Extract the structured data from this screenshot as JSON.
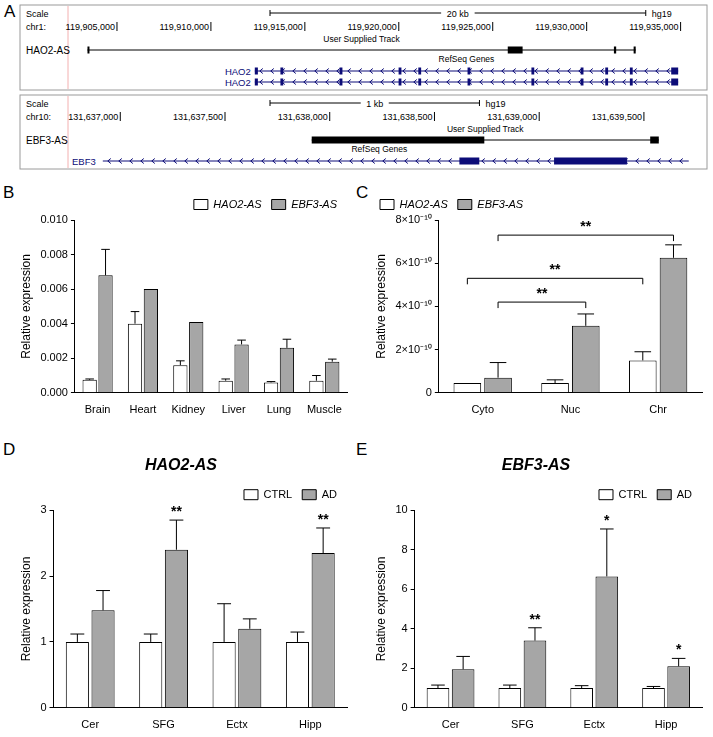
{
  "diagram": {
    "panel": "A",
    "tracks": [
      {
        "scale_label": "Scale",
        "scale_bar": {
          "value": 20000,
          "label": "20 kb"
        },
        "assembly": "hg19",
        "chrom": "chr1:",
        "range": [
          119902500,
          119935500
        ],
        "ticks": [
          {
            "value": 119905000,
            "label": "119,905,000"
          },
          {
            "value": 119910000,
            "label": "119,910,000"
          },
          {
            "value": 119915000,
            "label": "119,915,000"
          },
          {
            "value": 119920000,
            "label": "119,920,000"
          },
          {
            "value": 119925000,
            "label": "119,925,000"
          },
          {
            "value": 119930000,
            "label": "119,930,000"
          },
          {
            "value": 119935000,
            "label": "119,935,000"
          }
        ],
        "user_track": {
          "name": "HAO2-AS",
          "label": "User Supplied Track",
          "start": 119903430,
          "end": 119932610,
          "blocks": [
            [
              119903430,
              119903530
            ],
            [
              119925800,
              119926590
            ],
            [
              119931450,
              119931570
            ],
            [
              119932500,
              119932610
            ]
          ]
        },
        "genes_label": "RefSeq Genes",
        "genes": [
          {
            "name": "HAO2",
            "start": 119912336,
            "end": 119934870,
            "blocks": [
              [
                119912336,
                119912500
              ],
              [
                119913700,
                119913850
              ],
              [
                119916850,
                119917000
              ],
              [
                119919990,
                119920140
              ],
              [
                119921040,
                119921190
              ],
              [
                119923660,
                119923810
              ],
              [
                119927060,
                119927210
              ],
              [
                119929680,
                119929830
              ],
              [
                119930990,
                119931140
              ],
              [
                119932300,
                119932450
              ],
              [
                119934500,
                119934870
              ]
            ]
          },
          {
            "name": "HAO2",
            "start": 119912336,
            "end": 119934870,
            "blocks": [
              [
                119912336,
                119912500
              ],
              [
                119913700,
                119913850
              ],
              [
                119916850,
                119917000
              ],
              [
                119919990,
                119920140
              ],
              [
                119921040,
                119921190
              ],
              [
                119923660,
                119923810
              ],
              [
                119927060,
                119927210
              ],
              [
                119929680,
                119929830
              ],
              [
                119930990,
                119931140
              ],
              [
                119932300,
                119932450
              ],
              [
                119934500,
                119934870
              ]
            ]
          }
        ]
      },
      {
        "scale_label": "Scale",
        "scale_bar": {
          "value": 1000,
          "label": "1 kb"
        },
        "assembly": "hg19",
        "chrom": "chr10:",
        "range": [
          131636760,
          131639720
        ],
        "ticks": [
          {
            "value": 131637000,
            "label": "131,637,000"
          },
          {
            "value": 131637500,
            "label": "131,637,500"
          },
          {
            "value": 131638000,
            "label": "131,638,000"
          },
          {
            "value": 131638500,
            "label": "131,638,500"
          },
          {
            "value": 131639000,
            "label": "131,639,000"
          },
          {
            "value": 131639500,
            "label": "131,639,500"
          }
        ],
        "user_track": {
          "name": "EBF3-AS",
          "label": "User Supplied Track",
          "start": 131637914,
          "end": 131639571,
          "blocks": [
            [
              131637914,
              131638738
            ],
            [
              131639530,
              131639571
            ]
          ]
        },
        "genes_label": "RefSeq Genes",
        "genes": [
          {
            "name": "EBF3",
            "start": 131636760,
            "end": 131639714,
            "blocks": [
              [
                131638619,
                131638714
              ],
              [
                131639071,
                131639419
              ]
            ]
          }
        ]
      }
    ]
  },
  "chart_data": [
    {
      "panel": "B",
      "type": "bar",
      "y_label": "Relative expression",
      "categories": [
        "Brain",
        "Heart",
        "Kidney",
        "Liver",
        "Lung",
        "Muscle"
      ],
      "series": [
        {
          "name": "HAO2-AS",
          "color": "#ffffff",
          "values": [
            0.00075,
            0.004,
            0.0016,
            0.0007,
            0.0006,
            0.0007
          ],
          "errors": [
            5e-05,
            0.0007,
            0.00025,
            0.0001,
            5e-05,
            0.0003
          ]
        },
        {
          "name": "EBF3-AS",
          "color": "#a6a6a6",
          "values": [
            0.0068,
            0.006,
            0.0041,
            0.0028,
            0.0026,
            0.0018
          ],
          "errors": [
            0.0015,
            0,
            0,
            0.00025,
            0.0005,
            0.00015
          ]
        }
      ],
      "ylim": [
        0,
        0.01
      ],
      "yticks": [
        {
          "value": 0,
          "label": "0.000"
        },
        {
          "value": 0.002,
          "label": "0.002"
        },
        {
          "value": 0.004,
          "label": "0.004"
        },
        {
          "value": 0.006,
          "label": "0.006"
        },
        {
          "value": 0.008,
          "label": "0.008"
        },
        {
          "value": 0.01,
          "label": "0.010"
        }
      ],
      "grid": false,
      "legend": "top-right"
    },
    {
      "panel": "C",
      "type": "bar",
      "y_label": "Relative expression",
      "categories": [
        "Cyto",
        "Nuc",
        "Chr"
      ],
      "series": [
        {
          "name": "HAO2-AS",
          "color": "#ffffff",
          "values": [
            4.5e-11,
            4.5e-11,
            1.5e-10
          ],
          "errors": [
            0,
            1.5e-11,
            4e-11
          ]
        },
        {
          "name": "EBF3-AS",
          "color": "#a6a6a6",
          "values": [
            7e-11,
            3.1e-10,
            6.25e-10
          ],
          "errors": [
            7e-11,
            5.5e-11,
            6e-11
          ]
        }
      ],
      "ylim": [
        0,
        8e-10
      ],
      "yticks": [
        0,
        {
          "value": 2e-10,
          "label": "2×10⁻¹⁰"
        },
        {
          "value": 4e-10,
          "label": "4×10⁻¹⁰"
        },
        {
          "value": 6e-10,
          "label": "6×10⁻¹⁰"
        },
        {
          "value": 8e-10,
          "label": "8×10⁻¹⁰"
        }
      ],
      "annotations": [
        {
          "text": "**",
          "from": [
            "Cyto",
            "EBF3-AS"
          ],
          "to": [
            "Chr",
            "EBF3-AS"
          ],
          "y": 7.3e-10
        },
        {
          "text": "**",
          "from": [
            "Cyto",
            "HAO2-AS"
          ],
          "to": [
            "Chr",
            "HAO2-AS"
          ],
          "y": 5.3e-10
        },
        {
          "text": "**",
          "from": [
            "Cyto",
            "EBF3-AS"
          ],
          "to": [
            "Nuc",
            "EBF3-AS"
          ],
          "y": 4.2e-10
        }
      ],
      "grid": false,
      "legend": "top-left"
    },
    {
      "panel": "D",
      "type": "bar",
      "title": "HAO2-AS",
      "y_label": "Relative expression",
      "categories": [
        "Cer",
        "SFG",
        "Ectx",
        "Hipp"
      ],
      "series": [
        {
          "name": "CTRL",
          "color": "#ffffff",
          "values": [
            1,
            1,
            1,
            1
          ],
          "errors": [
            0.12,
            0.12,
            0.58,
            0.15
          ]
        },
        {
          "name": "AD",
          "color": "#a6a6a6",
          "values": [
            1.48,
            2.4,
            1.2,
            2.35
          ],
          "errors": [
            0.3,
            0.45,
            0.15,
            0.38
          ],
          "significance": [
            null,
            "**",
            null,
            "**"
          ]
        }
      ],
      "ylim": [
        0,
        3
      ],
      "yticks": [
        0,
        1,
        2,
        3
      ],
      "grid": false,
      "legend": "top-right"
    },
    {
      "panel": "E",
      "type": "bar",
      "title": "EBF3-AS",
      "y_label": "Relative expression",
      "categories": [
        "Cer",
        "SFG",
        "Ectx",
        "Hipp"
      ],
      "series": [
        {
          "name": "CTRL",
          "color": "#ffffff",
          "values": [
            1,
            1,
            1,
            1
          ],
          "errors": [
            0.15,
            0.15,
            0.12,
            0.08
          ]
        },
        {
          "name": "AD",
          "color": "#a6a6a6",
          "values": [
            1.95,
            3.4,
            6.65,
            2.1
          ],
          "errors": [
            0.65,
            0.65,
            2.4,
            0.4
          ],
          "significance": [
            null,
            "**",
            "*",
            "*"
          ]
        }
      ],
      "ylim": [
        0,
        10
      ],
      "yticks": [
        0,
        2,
        4,
        6,
        8,
        10
      ],
      "grid": false,
      "legend": "top-right"
    }
  ]
}
